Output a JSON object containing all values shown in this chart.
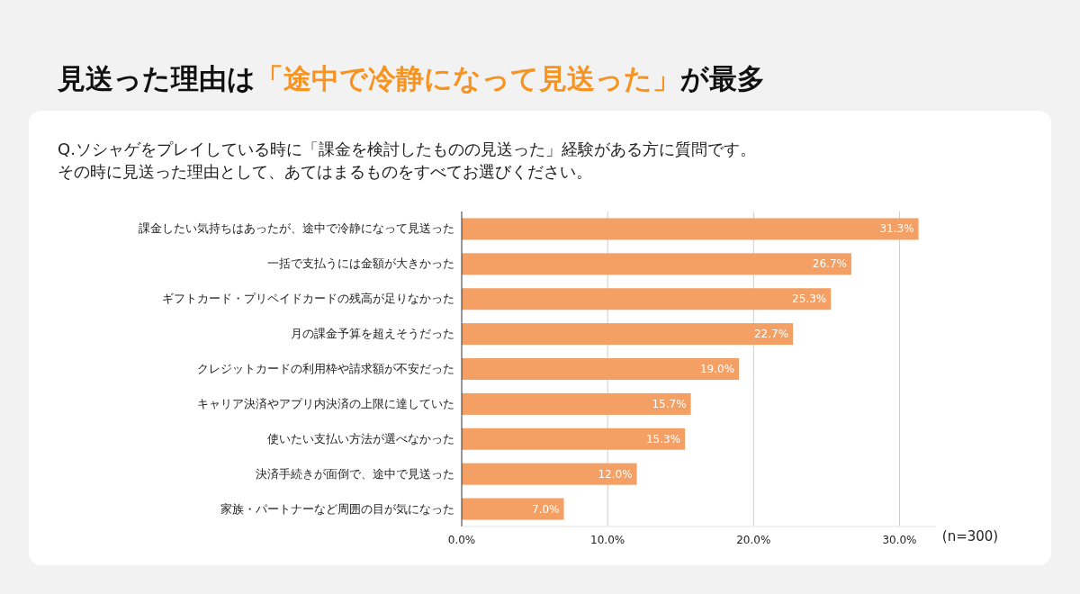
{
  "chart_data": {
    "type": "bar",
    "orientation": "horizontal",
    "title": "見送った理由は**「途中で冷静になって見送った」**が最多",
    "subtitle": "Q.ソシャゲをプレイしている時に「課金を検討したものの見送った」経験がある方に質問です。",
    "categories": [
      "課金したい気持ちはあったが、途中で冷静になって見送った",
      "一括で支払うには金額が大きかった",
      "ギフトカード・プリペイドカードの残高が足りなかった",
      "月の課金予算を超えそうだった",
      "クレジットカードの利用枠や請求額が不安だった",
      "キャリア決済やアプリ内決済の上限に達していた",
      "使いたい支払い方法が選べなかった",
      "決済手続きが面倒で、途中で見送った",
      "家族・パートナーなど周囲の目が気になった"
    ],
    "values": [
      31.3,
      26.7,
      25.3,
      22.7,
      19.0,
      15.7,
      15.3,
      12.0,
      7.0
    ],
    "value_labels": [
      "31.3%",
      "26.7%",
      "25.3%",
      "22.7%",
      "19.0%",
      "15.7%",
      "15.3%",
      "12.0%",
      "7.0%"
    ],
    "color": "#f4a064",
    "xlim": [
      0,
      32.5
    ],
    "xticks": [
      {
        "value": 0,
        "label": "0.0%"
      },
      {
        "value": 10,
        "label": "10.0%"
      },
      {
        "value": 20,
        "label": "20.0%"
      },
      {
        "value": 30,
        "label": "30.0%"
      }
    ],
    "grid": "x",
    "annotations": [
      "その時に見送った理由として、あてはまるものをすべてお選びください。",
      "(n=300)"
    ]
  }
}
